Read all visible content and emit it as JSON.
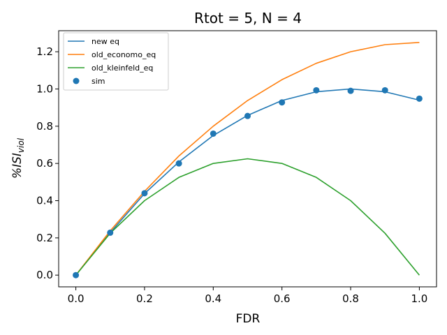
{
  "chart_data": {
    "type": "line",
    "title": "Rtot = 5, N = 4",
    "xlabel": "FDR",
    "ylabel_main": "%ISI",
    "ylabel_sub": "viol",
    "xlim": [
      -0.05,
      1.05
    ],
    "ylim": [
      -0.063,
      1.313
    ],
    "xticks": [
      0.0,
      0.2,
      0.4,
      0.6,
      0.8,
      1.0
    ],
    "xtick_labels": [
      "0.0",
      "0.2",
      "0.4",
      "0.6",
      "0.8",
      "1.0"
    ],
    "yticks": [
      0.0,
      0.2,
      0.4,
      0.6,
      0.8,
      1.0,
      1.2
    ],
    "ytick_labels": [
      "0.0",
      "0.2",
      "0.4",
      "0.6",
      "0.8",
      "1.0",
      "1.2"
    ],
    "grid": false,
    "legend_position": "top-left",
    "x": [
      0.0,
      0.1,
      0.2,
      0.3,
      0.4,
      0.5,
      0.6,
      0.7,
      0.8,
      0.9,
      1.0
    ],
    "series": [
      {
        "name": "new eq",
        "kind": "line",
        "color": "#1f77b4",
        "values": [
          0.0,
          0.228,
          0.438,
          0.608,
          0.75,
          0.858,
          0.938,
          0.985,
          1.0,
          0.985,
          0.94
        ]
      },
      {
        "name": "old_economo_eq",
        "kind": "line",
        "color": "#ff7f0e",
        "values": [
          0.0,
          0.238,
          0.45,
          0.64,
          0.8,
          0.938,
          1.05,
          1.138,
          1.2,
          1.238,
          1.25
        ]
      },
      {
        "name": "old_kleinfeld_eq",
        "kind": "line",
        "color": "#2ca02c",
        "values": [
          0.0,
          0.225,
          0.4,
          0.525,
          0.6,
          0.625,
          0.6,
          0.525,
          0.4,
          0.225,
          0.0
        ]
      },
      {
        "name": "sim",
        "kind": "scatter",
        "color": "#1f77b4",
        "values": [
          0.0,
          0.228,
          0.44,
          0.6,
          0.76,
          0.855,
          0.928,
          0.993,
          0.99,
          0.993,
          0.948
        ]
      }
    ]
  }
}
